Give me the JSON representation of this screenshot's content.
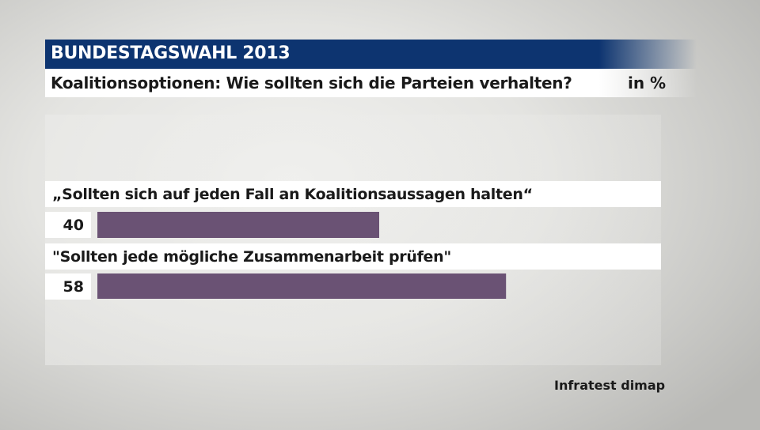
{
  "header": {
    "title": "BUNDESTAGSWAHL 2013",
    "subtitle": "Koalitionsoptionen: Wie sollten sich die Parteien verhalten?",
    "unit": "in %"
  },
  "chart_data": {
    "type": "bar",
    "orientation": "horizontal",
    "title": "Koalitionsoptionen: Wie sollten sich die Parteien verhalten?",
    "categories": [
      "„Sollten sich auf jeden Fall an Koalitionsaussagen halten“",
      "\"Sollten jede mögliche Zusammenarbeit prüfen\""
    ],
    "values": [
      40,
      58
    ],
    "value_labels": [
      "40",
      "58"
    ],
    "unit": "in %",
    "xlim": [
      0,
      80
    ],
    "bar_color": "#6a5274",
    "grid": false
  },
  "source": "Infratest dimap"
}
